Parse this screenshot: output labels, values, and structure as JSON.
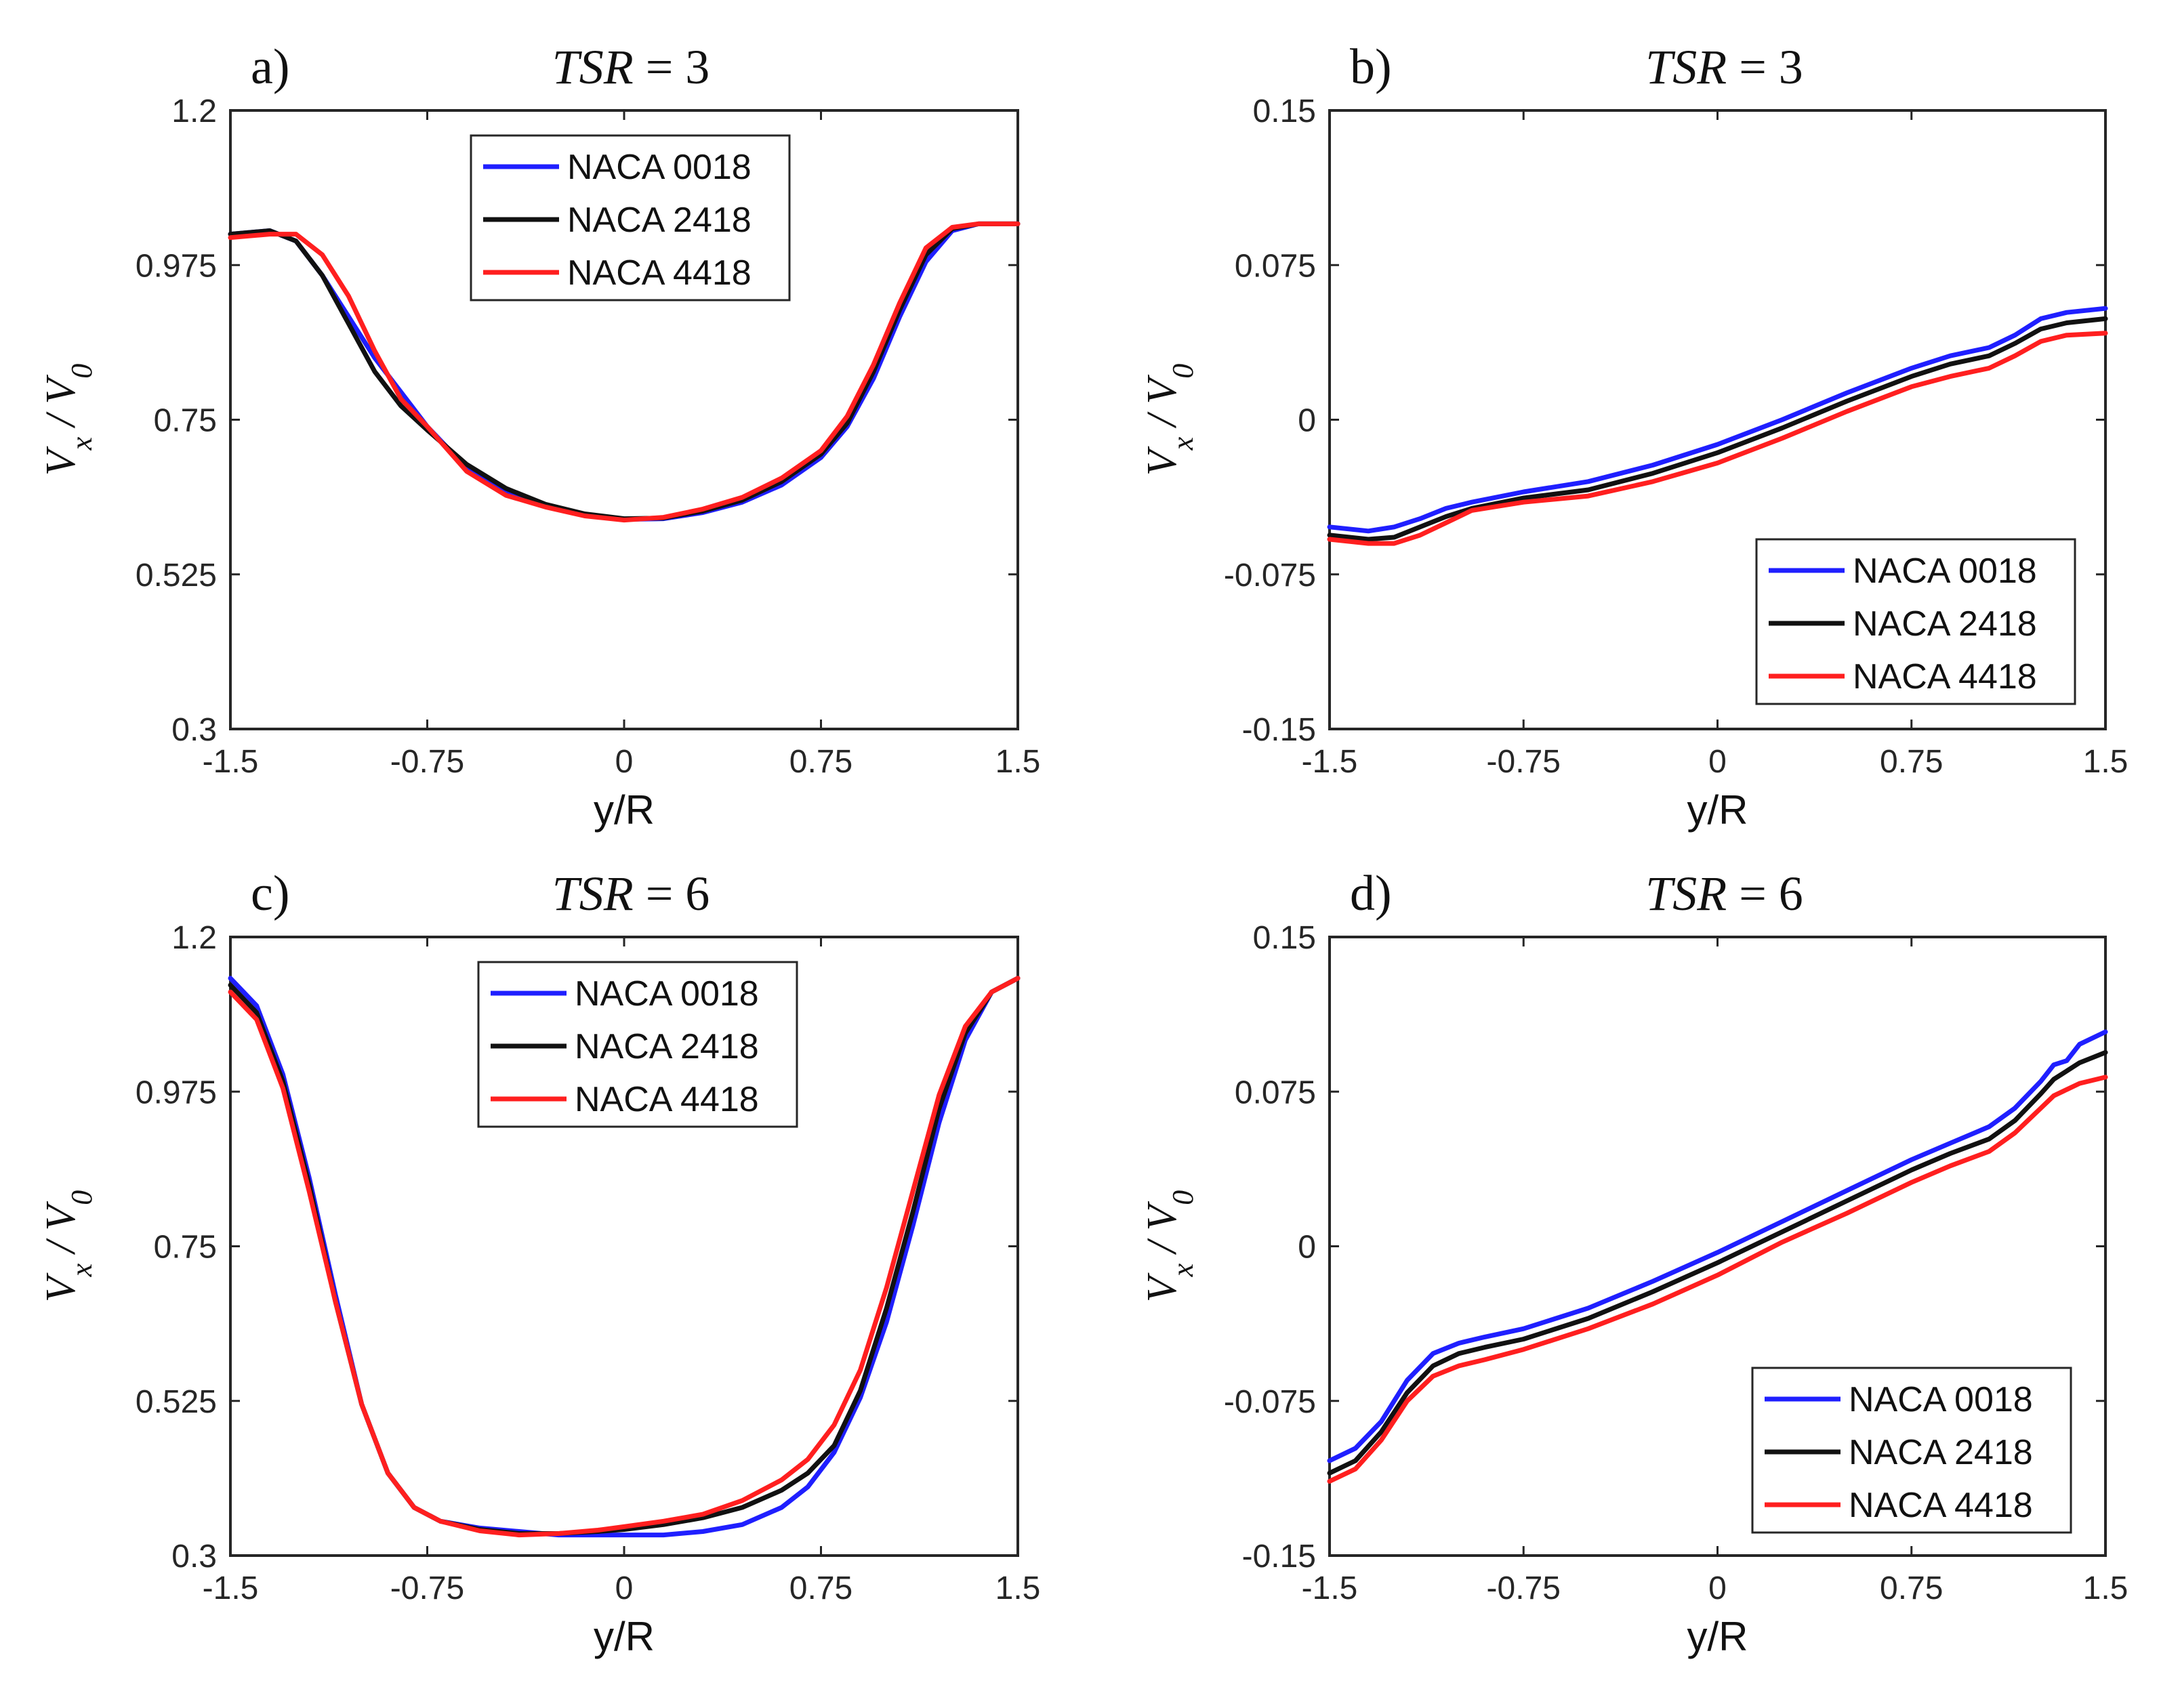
{
  "colors": {
    "NACA 0018": "#1f1fff",
    "NACA 2418": "#111111",
    "NACA 4418": "#ff1f1f"
  },
  "chart_data": [
    {
      "type": "line",
      "panel_label": "a)",
      "title": "TSR = 3",
      "title_var": "TSR",
      "title_rest": " = 3",
      "xlabel": "y/R",
      "ylabel": "Vx / V0",
      "xlim": [
        -1.5,
        1.5
      ],
      "ylim": [
        0.3,
        1.2
      ],
      "xticks": [
        -1.5,
        -0.75,
        0,
        0.75,
        1.5
      ],
      "xtick_labels": [
        "-1.5",
        "-0.75",
        "0",
        "0.75",
        "1.5"
      ],
      "yticks": [
        0.3,
        0.525,
        0.75,
        0.975,
        1.2
      ],
      "ytick_labels": [
        "0.3",
        "0.525",
        "0.75",
        "0.975",
        "1.2"
      ],
      "legend": [
        "NACA 0018",
        "NACA 2418",
        "NACA 4418"
      ],
      "legend_position": "top-center",
      "x": [
        -1.5,
        -1.35,
        -1.25,
        -1.15,
        -1.05,
        -0.95,
        -0.85,
        -0.75,
        -0.6,
        -0.45,
        -0.3,
        -0.15,
        0,
        0.15,
        0.3,
        0.45,
        0.6,
        0.75,
        0.85,
        0.95,
        1.05,
        1.15,
        1.25,
        1.35,
        1.5
      ],
      "series": [
        {
          "name": "NACA 0018",
          "values": [
            1.02,
            1.025,
            1.01,
            0.96,
            0.9,
            0.84,
            0.79,
            0.74,
            0.68,
            0.645,
            0.625,
            0.612,
            0.605,
            0.606,
            0.615,
            0.63,
            0.655,
            0.695,
            0.74,
            0.81,
            0.9,
            0.98,
            1.025,
            1.035,
            1.035
          ]
        },
        {
          "name": "NACA 2418",
          "values": [
            1.02,
            1.025,
            1.01,
            0.96,
            0.89,
            0.82,
            0.77,
            0.735,
            0.685,
            0.65,
            0.627,
            0.613,
            0.606,
            0.607,
            0.617,
            0.633,
            0.66,
            0.7,
            0.745,
            0.82,
            0.91,
            0.99,
            1.028,
            1.035,
            1.035
          ]
        },
        {
          "name": "NACA 4418",
          "values": [
            1.015,
            1.02,
            1.02,
            0.99,
            0.93,
            0.85,
            0.78,
            0.74,
            0.675,
            0.64,
            0.623,
            0.61,
            0.604,
            0.608,
            0.62,
            0.637,
            0.665,
            0.705,
            0.755,
            0.83,
            0.92,
            1.0,
            1.03,
            1.035,
            1.035
          ]
        }
      ]
    },
    {
      "type": "line",
      "panel_label": "b)",
      "title": "TSR = 3",
      "title_var": "TSR",
      "title_rest": " = 3",
      "xlabel": "y/R",
      "ylabel": "Vx / V0",
      "xlim": [
        -1.5,
        1.5
      ],
      "ylim": [
        -0.15,
        0.15
      ],
      "xticks": [
        -1.5,
        -0.75,
        0,
        0.75,
        1.5
      ],
      "xtick_labels": [
        "-1.5",
        "-0.75",
        "0",
        "0.75",
        "1.5"
      ],
      "yticks": [
        -0.15,
        -0.075,
        0,
        0.075,
        0.15
      ],
      "ytick_labels": [
        "-0.15",
        "-0.075",
        "0",
        "0.075",
        "0.15"
      ],
      "legend": [
        "NACA 0018",
        "NACA 2418",
        "NACA 4418"
      ],
      "legend_position": "bottom-right",
      "x": [
        -1.5,
        -1.35,
        -1.25,
        -1.15,
        -1.05,
        -0.95,
        -0.75,
        -0.5,
        -0.25,
        0,
        0.25,
        0.5,
        0.75,
        0.9,
        1.05,
        1.15,
        1.25,
        1.35,
        1.5
      ],
      "series": [
        {
          "name": "NACA 0018",
          "values": [
            -0.052,
            -0.054,
            -0.052,
            -0.048,
            -0.043,
            -0.04,
            -0.035,
            -0.03,
            -0.022,
            -0.012,
            0.0,
            0.013,
            0.025,
            0.031,
            0.035,
            0.041,
            0.049,
            0.052,
            0.054
          ]
        },
        {
          "name": "NACA 2418",
          "values": [
            -0.056,
            -0.058,
            -0.057,
            -0.052,
            -0.047,
            -0.043,
            -0.038,
            -0.034,
            -0.026,
            -0.016,
            -0.004,
            0.009,
            0.021,
            0.027,
            0.031,
            0.037,
            0.044,
            0.047,
            0.049
          ]
        },
        {
          "name": "NACA 4418",
          "values": [
            -0.058,
            -0.06,
            -0.06,
            -0.056,
            -0.05,
            -0.044,
            -0.04,
            -0.037,
            -0.03,
            -0.021,
            -0.009,
            0.004,
            0.016,
            0.021,
            0.025,
            0.031,
            0.038,
            0.041,
            0.042
          ]
        }
      ]
    },
    {
      "type": "line",
      "panel_label": "c)",
      "title": "TSR = 6",
      "title_var": "TSR",
      "title_rest": " = 6",
      "xlabel": "y/R",
      "ylabel": "Vx / V0",
      "xlim": [
        -1.5,
        1.5
      ],
      "ylim": [
        0.3,
        1.2
      ],
      "xticks": [
        -1.5,
        -0.75,
        0,
        0.75,
        1.5
      ],
      "xtick_labels": [
        "-1.5",
        "-0.75",
        "0",
        "0.75",
        "1.5"
      ],
      "yticks": [
        0.3,
        0.525,
        0.75,
        0.975,
        1.2
      ],
      "ytick_labels": [
        "0.3",
        "0.525",
        "0.75",
        "0.975",
        "1.2"
      ],
      "legend": [
        "NACA 0018",
        "NACA 2418",
        "NACA 4418"
      ],
      "legend_position": "top-center",
      "x": [
        -1.5,
        -1.4,
        -1.3,
        -1.2,
        -1.1,
        -1.0,
        -0.9,
        -0.8,
        -0.7,
        -0.55,
        -0.4,
        -0.25,
        -0.1,
        0,
        0.15,
        0.3,
        0.45,
        0.6,
        0.7,
        0.8,
        0.9,
        1.0,
        1.1,
        1.2,
        1.3,
        1.4,
        1.5
      ],
      "series": [
        {
          "name": "NACA 0018",
          "values": [
            1.14,
            1.1,
            1.0,
            0.85,
            0.68,
            0.52,
            0.42,
            0.37,
            0.35,
            0.34,
            0.335,
            0.33,
            0.33,
            0.33,
            0.33,
            0.335,
            0.345,
            0.37,
            0.4,
            0.45,
            0.53,
            0.64,
            0.78,
            0.93,
            1.05,
            1.12,
            1.14
          ]
        },
        {
          "name": "NACA 2418",
          "values": [
            1.13,
            1.09,
            0.99,
            0.84,
            0.67,
            0.52,
            0.42,
            0.37,
            0.35,
            0.338,
            0.332,
            0.332,
            0.335,
            0.338,
            0.345,
            0.355,
            0.37,
            0.395,
            0.42,
            0.46,
            0.54,
            0.66,
            0.8,
            0.95,
            1.06,
            1.12,
            1.14
          ]
        },
        {
          "name": "NACA 4418",
          "values": [
            1.12,
            1.08,
            0.98,
            0.83,
            0.67,
            0.52,
            0.42,
            0.37,
            0.35,
            0.336,
            0.33,
            0.332,
            0.337,
            0.342,
            0.35,
            0.36,
            0.38,
            0.41,
            0.44,
            0.49,
            0.57,
            0.69,
            0.83,
            0.97,
            1.07,
            1.12,
            1.14
          ]
        }
      ]
    },
    {
      "type": "line",
      "panel_label": "d)",
      "title": "TSR = 6",
      "title_var": "TSR",
      "title_rest": " = 6",
      "xlabel": "y/R",
      "ylabel": "Vx / V0",
      "xlim": [
        -1.5,
        1.5
      ],
      "ylim": [
        -0.15,
        0.15
      ],
      "xticks": [
        -1.5,
        -0.75,
        0,
        0.75,
        1.5
      ],
      "xtick_labels": [
        "-1.5",
        "-0.75",
        "0",
        "0.75",
        "1.5"
      ],
      "yticks": [
        -0.15,
        -0.075,
        0,
        0.075,
        0.15
      ],
      "ytick_labels": [
        "-0.15",
        "-0.075",
        "0",
        "0.075",
        "0.15"
      ],
      "legend": [
        "NACA 0018",
        "NACA 2418",
        "NACA 4418"
      ],
      "legend_position": "bottom-right",
      "x": [
        -1.5,
        -1.4,
        -1.3,
        -1.2,
        -1.1,
        -1.0,
        -0.9,
        -0.75,
        -0.5,
        -0.25,
        0,
        0.25,
        0.5,
        0.75,
        0.9,
        1.05,
        1.15,
        1.25,
        1.3,
        1.35,
        1.4,
        1.5
      ],
      "series": [
        {
          "name": "NACA 0018",
          "values": [
            -0.104,
            -0.098,
            -0.085,
            -0.065,
            -0.052,
            -0.047,
            -0.044,
            -0.04,
            -0.03,
            -0.017,
            -0.003,
            0.012,
            0.027,
            0.042,
            0.05,
            0.058,
            0.067,
            0.08,
            0.088,
            0.09,
            0.098,
            0.104
          ]
        },
        {
          "name": "NACA 2418",
          "values": [
            -0.11,
            -0.104,
            -0.09,
            -0.071,
            -0.058,
            -0.052,
            -0.049,
            -0.045,
            -0.035,
            -0.022,
            -0.008,
            0.007,
            0.022,
            0.037,
            0.045,
            0.052,
            0.061,
            0.074,
            0.081,
            0.085,
            0.089,
            0.094
          ]
        },
        {
          "name": "NACA 4418",
          "values": [
            -0.114,
            -0.108,
            -0.094,
            -0.075,
            -0.063,
            -0.058,
            -0.055,
            -0.05,
            -0.04,
            -0.028,
            -0.014,
            0.002,
            0.016,
            0.031,
            0.039,
            0.046,
            0.055,
            0.067,
            0.073,
            0.076,
            0.079,
            0.082
          ]
        }
      ]
    }
  ]
}
